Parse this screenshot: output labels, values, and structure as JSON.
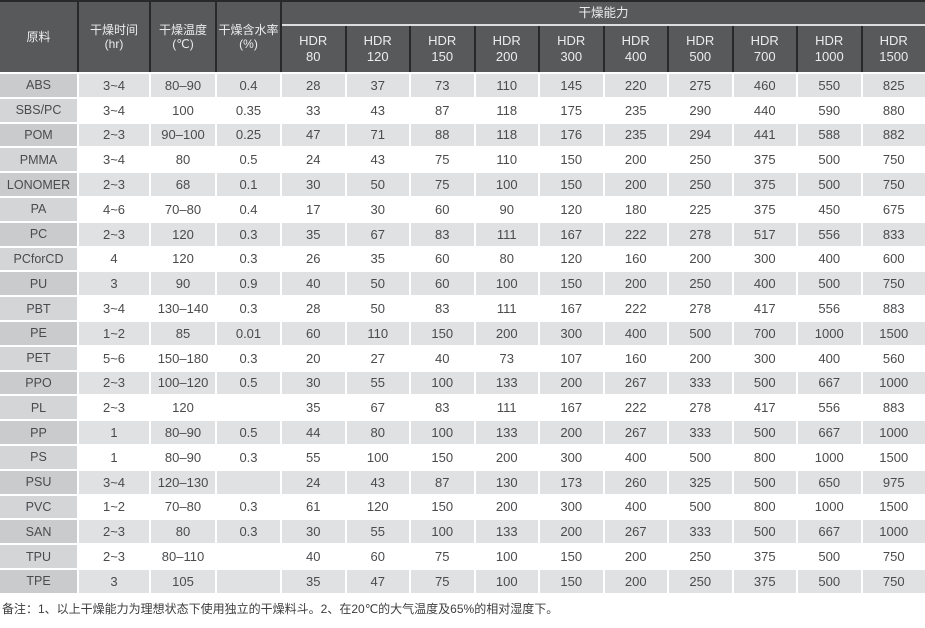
{
  "table": {
    "headers": {
      "material": "原料",
      "time": [
        "干燥时间",
        "(hr)"
      ],
      "temp": [
        "干燥温度",
        "(℃)"
      ],
      "moisture": [
        "干燥含水率",
        "(%)"
      ],
      "capacity": "干燥能力",
      "models": [
        [
          "HDR",
          "80"
        ],
        [
          "HDR",
          "120"
        ],
        [
          "HDR",
          "150"
        ],
        [
          "HDR",
          "200"
        ],
        [
          "HDR",
          "300"
        ],
        [
          "HDR",
          "400"
        ],
        [
          "HDR",
          "500"
        ],
        [
          "HDR",
          "700"
        ],
        [
          "HDR",
          "1000"
        ],
        [
          "HDR",
          "1500"
        ]
      ]
    },
    "rows": [
      {
        "material": "ABS",
        "time": "3~4",
        "temp": "80–90",
        "moisture": "0.4",
        "capacity": [
          28,
          37,
          73,
          110,
          145,
          220,
          275,
          460,
          550,
          825
        ]
      },
      {
        "material": "SBS/PC",
        "time": "3~4",
        "temp": "100",
        "moisture": "0.35",
        "capacity": [
          33,
          43,
          87,
          118,
          175,
          235,
          290,
          440,
          590,
          880
        ]
      },
      {
        "material": "POM",
        "time": "2~3",
        "temp": "90–100",
        "moisture": "0.25",
        "capacity": [
          47,
          71,
          88,
          118,
          176,
          235,
          294,
          441,
          588,
          882
        ]
      },
      {
        "material": "PMMA",
        "time": "3~4",
        "temp": "80",
        "moisture": "0.5",
        "capacity": [
          24,
          43,
          75,
          110,
          150,
          200,
          250,
          375,
          500,
          750
        ]
      },
      {
        "material": "LONOMER",
        "time": "2~3",
        "temp": "68",
        "moisture": "0.1",
        "capacity": [
          30,
          50,
          75,
          100,
          150,
          200,
          250,
          375,
          500,
          750
        ]
      },
      {
        "material": "PA",
        "time": "4~6",
        "temp": "70–80",
        "moisture": "0.4",
        "capacity": [
          17,
          30,
          60,
          90,
          120,
          180,
          225,
          375,
          450,
          675
        ]
      },
      {
        "material": "PC",
        "time": "2~3",
        "temp": "120",
        "moisture": "0.3",
        "capacity": [
          35,
          67,
          83,
          111,
          167,
          222,
          278,
          517,
          556,
          833
        ]
      },
      {
        "material": "PCforCD",
        "time": "4",
        "temp": "120",
        "moisture": "0.3",
        "capacity": [
          26,
          35,
          60,
          80,
          120,
          160,
          200,
          300,
          400,
          600
        ]
      },
      {
        "material": "PU",
        "time": "3",
        "temp": "90",
        "moisture": "0.9",
        "capacity": [
          40,
          50,
          60,
          100,
          150,
          200,
          250,
          400,
          500,
          750
        ]
      },
      {
        "material": "PBT",
        "time": "3~4",
        "temp": "130–140",
        "moisture": "0.3",
        "capacity": [
          28,
          50,
          83,
          111,
          167,
          222,
          278,
          417,
          556,
          883
        ]
      },
      {
        "material": "PE",
        "time": "1~2",
        "temp": "85",
        "moisture": "0.01",
        "capacity": [
          60,
          110,
          150,
          200,
          300,
          400,
          500,
          700,
          1000,
          1500
        ]
      },
      {
        "material": "PET",
        "time": "5~6",
        "temp": "150–180",
        "moisture": "0.3",
        "capacity": [
          20,
          27,
          40,
          73,
          107,
          160,
          200,
          300,
          400,
          560
        ]
      },
      {
        "material": "PPO",
        "time": "2~3",
        "temp": "100–120",
        "moisture": "0.5",
        "capacity": [
          30,
          55,
          100,
          133,
          200,
          267,
          333,
          500,
          667,
          1000
        ]
      },
      {
        "material": "PL",
        "time": "2~3",
        "temp": "120",
        "moisture": "",
        "capacity": [
          35,
          67,
          83,
          111,
          167,
          222,
          278,
          417,
          556,
          883
        ]
      },
      {
        "material": "PP",
        "time": "1",
        "temp": "80–90",
        "moisture": "0.5",
        "capacity": [
          44,
          80,
          100,
          133,
          200,
          267,
          333,
          500,
          667,
          1000
        ]
      },
      {
        "material": "PS",
        "time": "1",
        "temp": "80–90",
        "moisture": "0.3",
        "capacity": [
          55,
          100,
          150,
          200,
          300,
          400,
          500,
          800,
          1000,
          1500
        ]
      },
      {
        "material": "PSU",
        "time": "3~4",
        "temp": "120–130",
        "moisture": "",
        "capacity": [
          24,
          43,
          87,
          130,
          173,
          260,
          325,
          500,
          650,
          975
        ]
      },
      {
        "material": "PVC",
        "time": "1~2",
        "temp": "70–80",
        "moisture": "0.3",
        "capacity": [
          61,
          120,
          150,
          200,
          300,
          400,
          500,
          800,
          1000,
          1500
        ]
      },
      {
        "material": "SAN",
        "time": "2~3",
        "temp": "80",
        "moisture": "0.3",
        "capacity": [
          30,
          55,
          100,
          133,
          200,
          267,
          333,
          500,
          667,
          1000
        ]
      },
      {
        "material": "TPU",
        "time": "2~3",
        "temp": "80–110",
        "moisture": "",
        "capacity": [
          40,
          60,
          75,
          100,
          150,
          200,
          250,
          375,
          500,
          750
        ]
      },
      {
        "material": "TPE",
        "time": "3",
        "temp": "105",
        "moisture": "",
        "capacity": [
          35,
          47,
          75,
          100,
          150,
          200,
          250,
          375,
          500,
          750
        ]
      }
    ]
  },
  "colors": {
    "header_bg": "#58595b",
    "header_gap": "#28292b",
    "row_odd": "#dfe1e2",
    "row_even": "#ffffff",
    "material_col_odd": "#c9cbcd",
    "material_col_even": "#d4d5d7"
  },
  "footnote": "备注：1、以上干燥能力为理想状态下使用独立的干燥料斗。2、在20℃的大气温度及65%的相对湿度下。"
}
